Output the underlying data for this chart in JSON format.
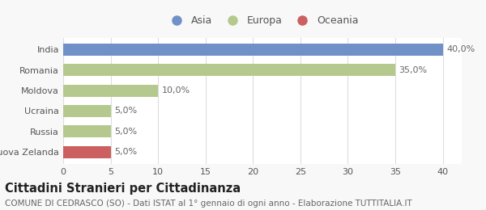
{
  "categories": [
    "Nuova Zelanda",
    "Russia",
    "Ucraina",
    "Moldova",
    "Romania",
    "India"
  ],
  "values": [
    5.0,
    5.0,
    5.0,
    10.0,
    35.0,
    40.0
  ],
  "colors": [
    "#cc5f5f",
    "#b5c98e",
    "#b5c98e",
    "#b5c98e",
    "#b5c98e",
    "#7090c8"
  ],
  "bar_labels": [
    "5,0%",
    "5,0%",
    "5,0%",
    "10,0%",
    "35,0%",
    "40,0%"
  ],
  "xlim": [
    0,
    40
  ],
  "xticks": [
    0,
    5,
    10,
    15,
    20,
    25,
    30,
    35,
    40
  ],
  "legend_entries": [
    "Asia",
    "Europa",
    "Oceania"
  ],
  "legend_colors": [
    "#7090c8",
    "#b5c98e",
    "#cc5f5f"
  ],
  "title_main": "Cittadini Stranieri per Cittadinanza",
  "title_sub": "COMUNE DI CEDRASCO (SO) - Dati ISTAT al 1° gennaio di ogni anno - Elaborazione TUTTITALIA.IT",
  "background_color": "#f8f8f8",
  "plot_background": "#ffffff",
  "grid_color": "#dddddd",
  "title_fontsize": 10.5,
  "subtitle_fontsize": 7.5,
  "label_fontsize": 8,
  "tick_fontsize": 8,
  "legend_fontsize": 9
}
